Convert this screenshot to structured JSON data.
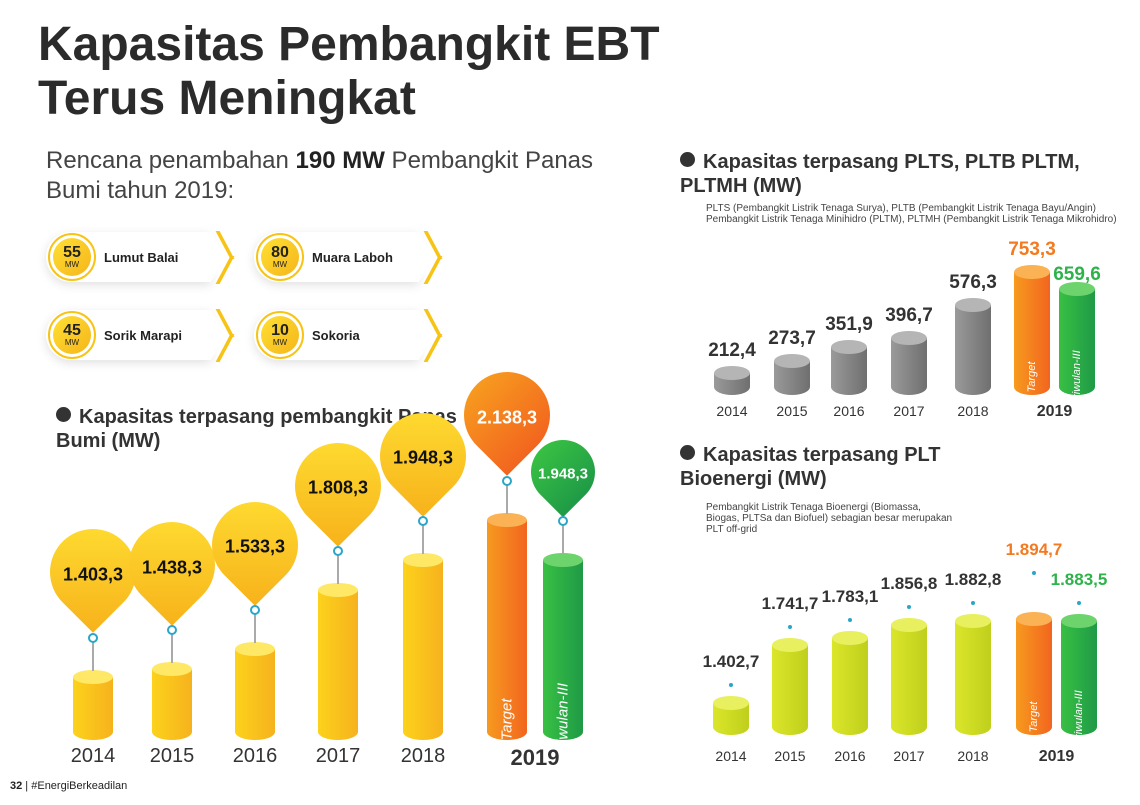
{
  "title_line1": "Kapasitas Pembangkit EBT",
  "title_line2": "Terus Meningkat",
  "subtitle": {
    "pre": "Rencana penambahan ",
    "bold": "190 MW",
    "post": " Pembangkit Panas Bumi tahun 2019:"
  },
  "plants": [
    {
      "mw": "55",
      "unit": "MW",
      "name": "Lumut Balai"
    },
    {
      "mw": "80",
      "unit": "MW",
      "name": "Muara Laboh"
    },
    {
      "mw": "45",
      "unit": "MW",
      "name": "Sorik Marapi"
    },
    {
      "mw": "10",
      "unit": "MW",
      "name": "Sokoria"
    }
  ],
  "footer": {
    "page": "32",
    "tag": "#EnergiBerkeadilan"
  },
  "colors": {
    "yellow": "#f9c418",
    "orange": "#f47a20",
    "green": "#2db34a",
    "gray": "#8a8a8a",
    "lime": "#cfdd1f",
    "teal": "#2aa6c9"
  },
  "chart_data": [
    {
      "type": "bar",
      "title": "Kapasitas terpasang pembangkit Panas Bumi (MW)",
      "categories": [
        "2014",
        "2015",
        "2016",
        "2017",
        "2018",
        "2019",
        "2019"
      ],
      "labels": [
        "1.403,3",
        "1.438,3",
        "1.533,3",
        "1.808,3",
        "1.948,3",
        "2.138,3",
        "1.948,3"
      ],
      "values": [
        1403.3,
        1438.3,
        1533.3,
        1808.3,
        1948.3,
        2138.3,
        1948.3
      ],
      "bar_tags": [
        "",
        "",
        "",
        "",
        "",
        "Target",
        "Triwulan-III"
      ],
      "year_2019": "2019"
    },
    {
      "type": "bar",
      "title": "Kapasitas terpasang PLTS, PLTB PLTM, PLTMH (MW)",
      "note": "PLTS (Pembangkit Listrik Tenaga Surya), PLTB (Pembangkit Listrik Tenaga Bayu/Angin) Pembangkit Listrik Tenaga Minihidro (PLTM), PLTMH (Pembangkit Listrik Tenaga Mikrohidro)",
      "categories": [
        "2014",
        "2015",
        "2016",
        "2017",
        "2018",
        "2019",
        "2019"
      ],
      "labels": [
        "212,4",
        "273,7",
        "351,9",
        "396,7",
        "576,3",
        "753,3",
        "659,6"
      ],
      "values": [
        212.4,
        273.7,
        351.9,
        396.7,
        576.3,
        753.3,
        659.6
      ],
      "bar_tags": [
        "",
        "",
        "",
        "",
        "",
        "Target",
        "Triwulan-III"
      ],
      "year_2019": "2019"
    },
    {
      "type": "bar",
      "title": "Kapasitas terpasang PLT Bioenergi (MW)",
      "note": "Pembangkit Listrik Tenaga Bioenergi (Biomassa, Biogas, PLTSa dan Biofuel) sebagian besar merupakan PLT off-grid",
      "categories": [
        "2014",
        "2015",
        "2016",
        "2017",
        "2018",
        "2019",
        "2019"
      ],
      "labels": [
        "1.402,7",
        "1.741,7",
        "1.783,1",
        "1.856,8",
        "1.882,8",
        "1.894,7",
        "1.883,5"
      ],
      "values": [
        1402.7,
        1741.7,
        1783.1,
        1856.8,
        1882.8,
        1894.7,
        1883.5
      ],
      "bar_tags": [
        "",
        "",
        "",
        "",
        "",
        "Target",
        "Triwulan-III"
      ],
      "year_2019": "2019"
    }
  ]
}
